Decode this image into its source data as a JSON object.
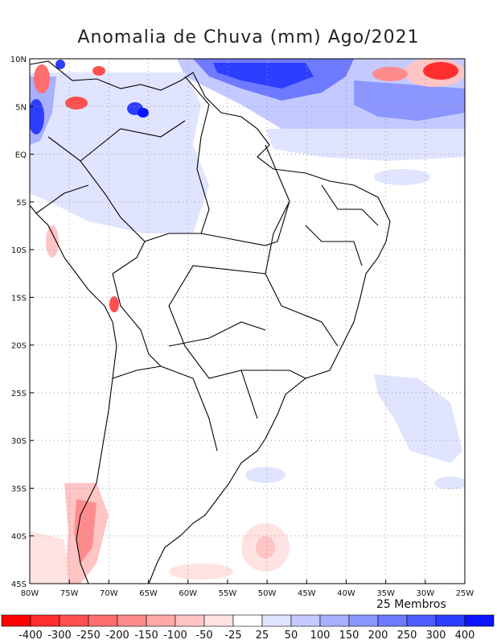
{
  "title": "Anomalia de Chuva (mm) Ago/2021",
  "members_label": "25 Membros",
  "x_ticks": [
    "80W",
    "75W",
    "70W",
    "65W",
    "60W",
    "55W",
    "50W",
    "45W",
    "40W",
    "35W",
    "30W",
    "25W"
  ],
  "y_ticks": [
    "10N",
    "5N",
    "EQ",
    "5S",
    "10S",
    "15S",
    "20S",
    "25S",
    "30S",
    "35S",
    "40S",
    "45S"
  ],
  "colorbar": {
    "labels": [
      "-400",
      "-300",
      "-250",
      "-200",
      "-150",
      "-100",
      "-50",
      "-25",
      "25",
      "50",
      "100",
      "150",
      "200",
      "250",
      "300",
      "400"
    ],
    "colors": [
      "#ff0000",
      "#ff2e2e",
      "#ff5050",
      "#ff6e6e",
      "#ff8c8c",
      "#ffa8a8",
      "#ffc4c4",
      "#ffe2e2",
      "#ffffff",
      "#e0e4ff",
      "#c4caff",
      "#a8b0ff",
      "#8c96ff",
      "#6e7aff",
      "#4e5cff",
      "#2e3eff",
      "#0a14ff"
    ]
  },
  "colors": {
    "wet": "#2e3eff",
    "dry": "#ff2e2e",
    "coast": "#000000",
    "grid": "#9a9a9a"
  }
}
